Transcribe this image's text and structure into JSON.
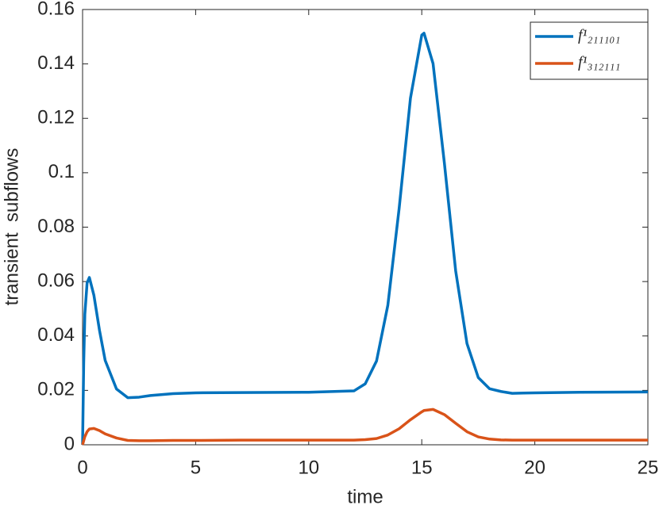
{
  "chart_data": {
    "type": "line",
    "x_label": "time",
    "y_label": "transient  subflows",
    "x": [
      0,
      0.05,
      0.1,
      0.2,
      0.3,
      0.5,
      0.75,
      1,
      1.5,
      2,
      2.5,
      3,
      4,
      5,
      7,
      10,
      12,
      12.5,
      13,
      13.5,
      14,
      14.5,
      15,
      15.1,
      15.5,
      16,
      16.5,
      17,
      17.5,
      18,
      18.5,
      19,
      19.5,
      20,
      22,
      25
    ],
    "series": [
      {
        "name": "f¹₂₁₁₁₀₁",
        "color": "#0072bd",
        "values": [
          0,
          0.03,
          0.048,
          0.0595,
          0.0615,
          0.055,
          0.042,
          0.031,
          0.0205,
          0.0173,
          0.0175,
          0.0181,
          0.0188,
          0.0191,
          0.0192,
          0.0193,
          0.0198,
          0.0224,
          0.0308,
          0.0513,
          0.0869,
          0.1274,
          0.1506,
          0.1513,
          0.1401,
          0.1036,
          0.0639,
          0.0372,
          0.0247,
          0.0206,
          0.0196,
          0.0189,
          0.019,
          0.0191,
          0.0193,
          0.0194
        ]
      },
      {
        "name": "f¹₃₁₂₁₁₁",
        "color": "#d95319",
        "values": [
          0,
          0.0015,
          0.003,
          0.0048,
          0.0058,
          0.006,
          0.0052,
          0.004,
          0.0025,
          0.0016,
          0.0015,
          0.0015,
          0.0016,
          0.0016,
          0.0017,
          0.0017,
          0.0017,
          0.0019,
          0.0023,
          0.0036,
          0.0059,
          0.0092,
          0.0121,
          0.0126,
          0.013,
          0.0111,
          0.0079,
          0.0048,
          0.0029,
          0.0021,
          0.0018,
          0.0017,
          0.0017,
          0.0017,
          0.0017,
          0.0017
        ]
      }
    ],
    "xlim": [
      0,
      25
    ],
    "xticks": [
      0,
      5,
      10,
      15,
      20,
      25
    ],
    "ylim": [
      0,
      0.16
    ],
    "yticks": [
      0,
      0.02,
      0.04,
      0.06,
      0.08,
      0.1,
      0.12,
      0.14,
      0.16
    ],
    "legend": "top-right"
  }
}
